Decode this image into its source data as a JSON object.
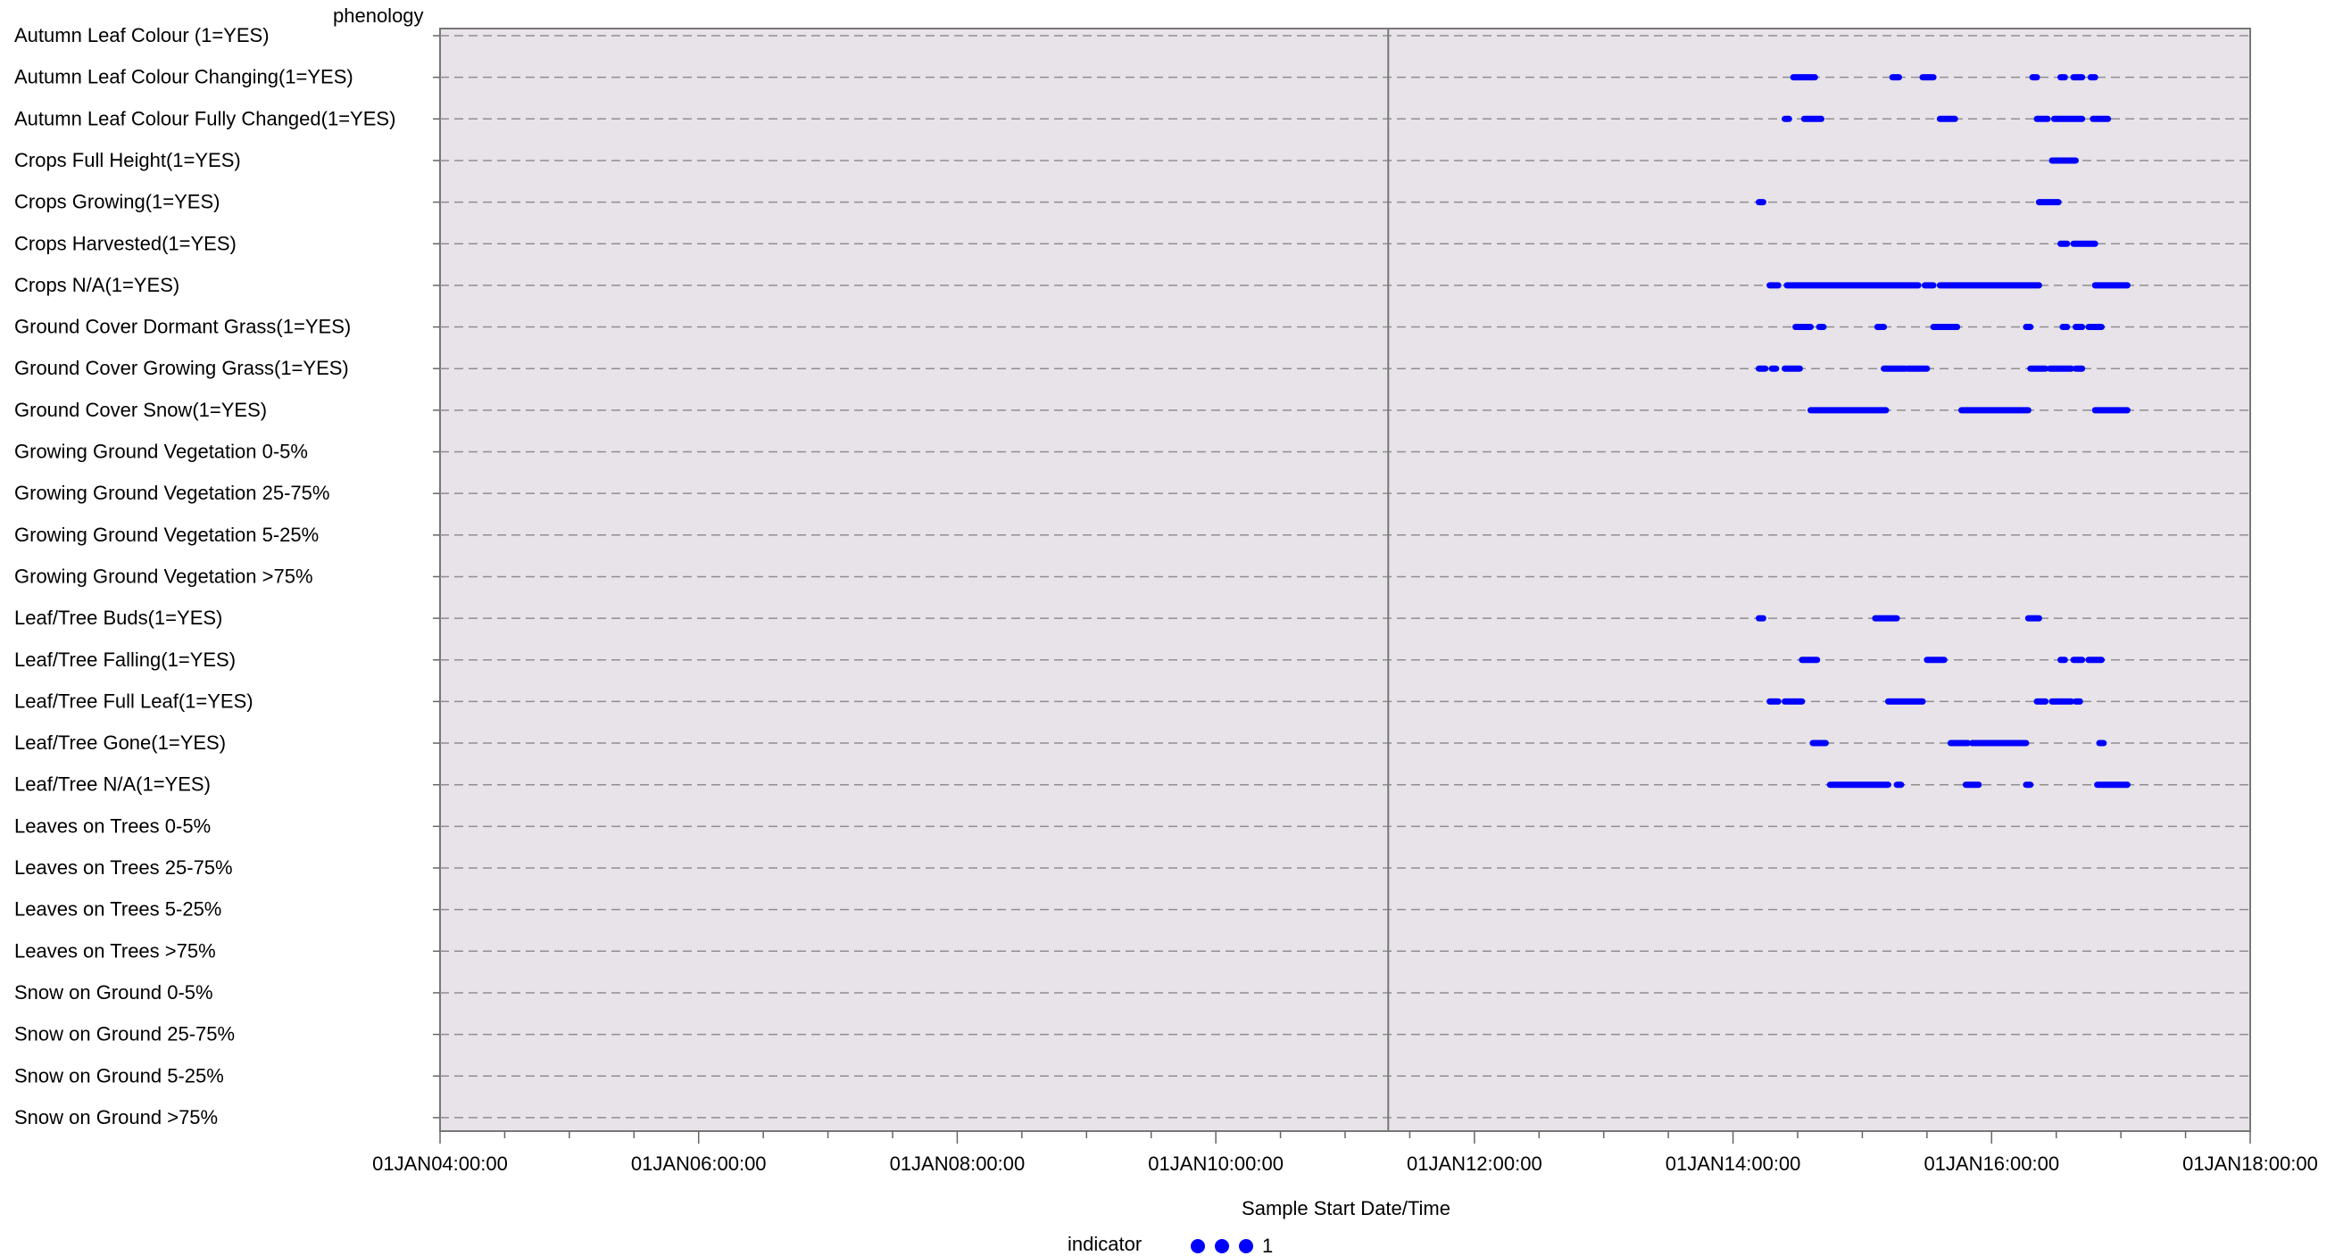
{
  "chart_data": {
    "type": "scatter",
    "title": "phenology",
    "xlabel": "Sample Start Date/Time",
    "ylabel": "",
    "x_ticks": [
      "01JAN04:00:00",
      "01JAN06:00:00",
      "01JAN08:00:00",
      "01JAN10:00:00",
      "01JAN12:00:00",
      "01JAN14:00:00",
      "01JAN16:00:00",
      "01JAN18:00:00"
    ],
    "xlim": [
      "01JAN04:00:00",
      "01JAN18:00:00"
    ],
    "reference_line": "01JAN11:20:00",
    "grid": "horizontal dashed",
    "legend": {
      "title": "indicator",
      "entries": [
        {
          "label": "1",
          "color": "#0000ff"
        }
      ],
      "position": "bottom-center"
    },
    "categories": [
      "Autumn Leaf Colour (1=YES)",
      "Autumn Leaf Colour Changing(1=YES)",
      "Autumn Leaf Colour Fully Changed(1=YES)",
      "Crops Full Height(1=YES)",
      "Crops Growing(1=YES)",
      "Crops Harvested(1=YES)",
      "Crops N/A(1=YES)",
      "Ground Cover Dormant Grass(1=YES)",
      "Ground Cover Growing Grass(1=YES)",
      "Ground Cover Snow(1=YES)",
      "Growing Ground Vegetation 0-5%",
      "Growing Ground Vegetation 25-75%",
      "Growing Ground Vegetation 5-25%",
      "Growing Ground Vegetation >75%",
      "Leaf/Tree Buds(1=YES)",
      "Leaf/Tree Falling(1=YES)",
      "Leaf/Tree Full Leaf(1=YES)",
      "Leaf/Tree Gone(1=YES)",
      "Leaf/Tree N/A(1=YES)",
      "Leaves on Trees 0-5%",
      "Leaves on Trees 25-75%",
      "Leaves on Trees 5-25%",
      "Leaves on Trees >75%",
      "Snow on Ground 0-5%",
      "Snow on Ground 25-75%",
      "Snow on Ground 5-25%",
      "Snow on Ground >75%"
    ],
    "series": [
      {
        "name": "1",
        "color": "#0000ff",
        "segments": [
          {
            "category": "Autumn Leaf Colour Changing(1=YES)",
            "ranges": [
              [
                "01JAN14:28:00",
                "01JAN14:38:00"
              ],
              [
                "01JAN15:14:00",
                "01JAN15:17:00"
              ],
              [
                "01JAN15:28:00",
                "01JAN15:33:00"
              ],
              [
                "01JAN16:19:00",
                "01JAN16:21:00"
              ],
              [
                "01JAN16:32:00",
                "01JAN16:34:00"
              ],
              [
                "01JAN16:38:00",
                "01JAN16:42:00"
              ],
              [
                "01JAN16:46:00",
                "01JAN16:48:00"
              ]
            ]
          },
          {
            "category": "Autumn Leaf Colour Fully Changed(1=YES)",
            "ranges": [
              [
                "01JAN14:24:00",
                "01JAN14:26:00"
              ],
              [
                "01JAN14:33:00",
                "01JAN14:41:00"
              ],
              [
                "01JAN15:36:00",
                "01JAN15:43:00"
              ],
              [
                "01JAN16:21:00",
                "01JAN16:26:00"
              ],
              [
                "01JAN16:29:00",
                "01JAN16:42:00"
              ],
              [
                "01JAN16:47:00",
                "01JAN16:54:00"
              ]
            ]
          },
          {
            "category": "Crops Full Height(1=YES)",
            "ranges": [
              [
                "01JAN16:28:00",
                "01JAN16:39:00"
              ]
            ]
          },
          {
            "category": "Crops Growing(1=YES)",
            "ranges": [
              [
                "01JAN14:12:00",
                "01JAN14:14:00"
              ],
              [
                "01JAN16:22:00",
                "01JAN16:31:00"
              ]
            ]
          },
          {
            "category": "Crops Harvested(1=YES)",
            "ranges": [
              [
                "01JAN16:32:00",
                "01JAN16:35:00"
              ],
              [
                "01JAN16:38:00",
                "01JAN16:48:00"
              ]
            ]
          },
          {
            "category": "Crops N/A(1=YES)",
            "ranges": [
              [
                "01JAN14:17:00",
                "01JAN14:21:00"
              ],
              [
                "01JAN14:25:00",
                "01JAN15:26:00"
              ],
              [
                "01JAN15:29:00",
                "01JAN15:33:00"
              ],
              [
                "01JAN15:36:00",
                "01JAN16:22:00"
              ],
              [
                "01JAN16:48:00",
                "01JAN17:03:00"
              ]
            ]
          },
          {
            "category": "Ground Cover Dormant Grass(1=YES)",
            "ranges": [
              [
                "01JAN14:29:00",
                "01JAN14:36:00"
              ],
              [
                "01JAN14:40:00",
                "01JAN14:42:00"
              ],
              [
                "01JAN15:07:00",
                "01JAN15:10:00"
              ],
              [
                "01JAN15:33:00",
                "01JAN15:44:00"
              ],
              [
                "01JAN16:16:00",
                "01JAN16:18:00"
              ],
              [
                "01JAN16:33:00",
                "01JAN16:35:00"
              ],
              [
                "01JAN16:39:00",
                "01JAN16:42:00"
              ],
              [
                "01JAN16:45:00",
                "01JAN16:51:00"
              ]
            ]
          },
          {
            "category": "Ground Cover Growing Grass(1=YES)",
            "ranges": [
              [
                "01JAN14:12:00",
                "01JAN14:15:00"
              ],
              [
                "01JAN14:18:00",
                "01JAN14:20:00"
              ],
              [
                "01JAN14:24:00",
                "01JAN14:31:00"
              ],
              [
                "01JAN15:10:00",
                "01JAN15:20:00"
              ],
              [
                "01JAN15:21:00",
                "01JAN15:30:00"
              ],
              [
                "01JAN16:18:00",
                "01JAN16:25:00"
              ],
              [
                "01JAN16:27:00",
                "01JAN16:37:00"
              ],
              [
                "01JAN16:39:00",
                "01JAN16:42:00"
              ]
            ]
          },
          {
            "category": "Ground Cover Snow(1=YES)",
            "ranges": [
              [
                "01JAN14:36:00",
                "01JAN15:11:00"
              ],
              [
                "01JAN15:46:00",
                "01JAN16:17:00"
              ],
              [
                "01JAN16:48:00",
                "01JAN17:03:00"
              ]
            ]
          },
          {
            "category": "Leaf/Tree Buds(1=YES)",
            "ranges": [
              [
                "01JAN14:12:00",
                "01JAN14:14:00"
              ],
              [
                "01JAN15:06:00",
                "01JAN15:16:00"
              ],
              [
                "01JAN16:17:00",
                "01JAN16:22:00"
              ]
            ]
          },
          {
            "category": "Leaf/Tree Falling(1=YES)",
            "ranges": [
              [
                "01JAN14:32:00",
                "01JAN14:39:00"
              ],
              [
                "01JAN15:30:00",
                "01JAN15:38:00"
              ],
              [
                "01JAN16:32:00",
                "01JAN16:34:00"
              ],
              [
                "01JAN16:38:00",
                "01JAN16:42:00"
              ],
              [
                "01JAN16:45:00",
                "01JAN16:51:00"
              ]
            ]
          },
          {
            "category": "Leaf/Tree Full Leaf(1=YES)",
            "ranges": [
              [
                "01JAN14:17:00",
                "01JAN14:21:00"
              ],
              [
                "01JAN14:24:00",
                "01JAN14:32:00"
              ],
              [
                "01JAN15:12:00",
                "01JAN15:28:00"
              ],
              [
                "01JAN16:21:00",
                "01JAN16:25:00"
              ],
              [
                "01JAN16:28:00",
                "01JAN16:37:00"
              ],
              [
                "01JAN16:39:00",
                "01JAN16:41:00"
              ]
            ]
          },
          {
            "category": "Leaf/Tree Gone(1=YES)",
            "ranges": [
              [
                "01JAN14:37:00",
                "01JAN14:43:00"
              ],
              [
                "01JAN15:41:00",
                "01JAN15:49:00"
              ],
              [
                "01JAN15:51:00",
                "01JAN16:16:00"
              ],
              [
                "01JAN16:50:00",
                "01JAN16:52:00"
              ]
            ]
          },
          {
            "category": "Leaf/Tree N/A(1=YES)",
            "ranges": [
              [
                "01JAN14:45:00",
                "01JAN15:12:00"
              ],
              [
                "01JAN15:16:00",
                "01JAN15:18:00"
              ],
              [
                "01JAN15:48:00",
                "01JAN15:54:00"
              ],
              [
                "01JAN16:16:00",
                "01JAN16:18:00"
              ],
              [
                "01JAN16:49:00",
                "01JAN17:03:00"
              ]
            ]
          }
        ]
      }
    ]
  }
}
